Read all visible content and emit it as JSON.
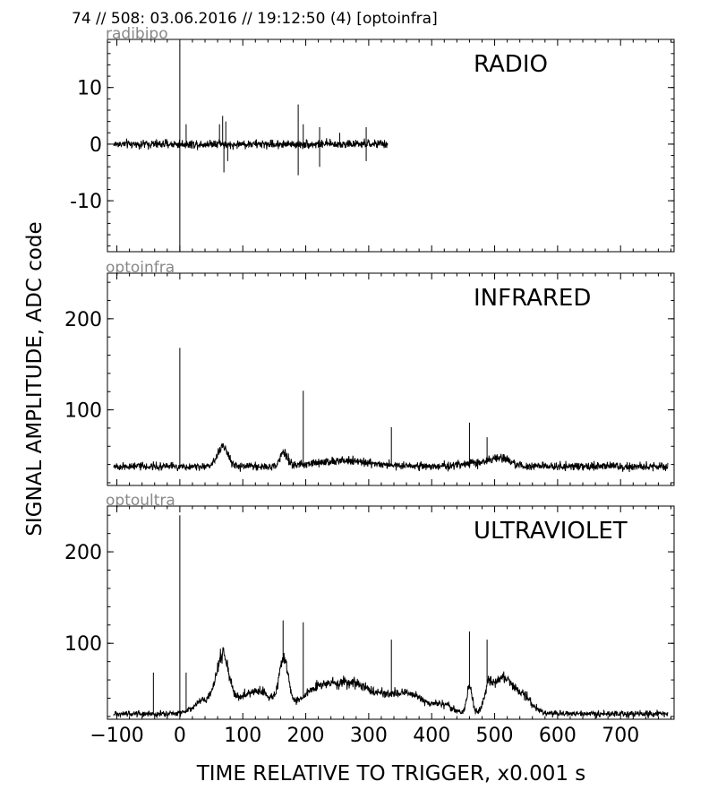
{
  "header": {
    "title": "74 // 508:   03.06.2016 // 19:12:50 (4)  [optoinfra]"
  },
  "ylabel": "SIGNAL AMPLITUDE,  ADC code",
  "xlabel": "TIME RELATIVE TO TRIGGER,   x0.001 s",
  "chart_data": [
    {
      "type": "line",
      "channel": "radibipo",
      "label": "RADIO",
      "xlim": [
        -115,
        785
      ],
      "ylim": [
        -19,
        18.5
      ],
      "yticks": [
        10,
        0,
        -10
      ],
      "yticklabels": [
        "10",
        "0",
        "-10"
      ],
      "baseline": 0,
      "noise": 0.7,
      "trace_end": 330,
      "bumps": [
        {
          "x": 68,
          "a": 1.5,
          "w": 12
        },
        {
          "x": 70,
          "a": -1.5,
          "w": 12
        }
      ],
      "spikes": [
        {
          "x": 0,
          "y": 17.5
        },
        {
          "x": 0,
          "y": -19
        },
        {
          "x": 10,
          "y": 3.5
        },
        {
          "x": 63,
          "y": 3.5
        },
        {
          "x": 68,
          "y": 5
        },
        {
          "x": 70,
          "y": -5
        },
        {
          "x": 73,
          "y": 4
        },
        {
          "x": 76,
          "y": -3
        },
        {
          "x": 188,
          "y": 7
        },
        {
          "x": 188,
          "y": -5.5
        },
        {
          "x": 196,
          "y": 3.5
        },
        {
          "x": 222,
          "y": 3
        },
        {
          "x": 222,
          "y": -4
        },
        {
          "x": 254,
          "y": 2
        },
        {
          "x": 296,
          "y": 3
        },
        {
          "x": 296,
          "y": -3
        }
      ]
    },
    {
      "type": "line",
      "channel": "optoinfra",
      "label": "INFRARED",
      "xlim": [
        -115,
        785
      ],
      "ylim": [
        17,
        250
      ],
      "yticks": [
        200,
        100
      ],
      "yticklabels": [
        "200",
        "100"
      ],
      "baseline": 38,
      "noise": 4,
      "trace_end": 775,
      "bumps": [
        {
          "x": 68,
          "a": 22,
          "w": 12
        },
        {
          "x": 165,
          "a": 14,
          "w": 8
        },
        {
          "x": 260,
          "a": 6,
          "w": 60
        },
        {
          "x": 480,
          "a": 4,
          "w": 40
        },
        {
          "x": 510,
          "a": 7,
          "w": 20
        }
      ],
      "spikes": [
        {
          "x": 0,
          "y": 168
        },
        {
          "x": 196,
          "y": 121
        },
        {
          "x": 336,
          "y": 81
        },
        {
          "x": 460,
          "y": 86
        },
        {
          "x": 488,
          "y": 70
        }
      ]
    },
    {
      "type": "line",
      "channel": "optoultra",
      "label": "ULTRAVIOLET",
      "xlim": [
        -115,
        785
      ],
      "ylim": [
        17,
        250
      ],
      "yticks": [
        200,
        100
      ],
      "yticklabels": [
        "200",
        "100"
      ],
      "baseline": 23,
      "noise": 3,
      "trace_end": 775,
      "bumps": [
        {
          "x": 40,
          "a": 14,
          "w": 25
        },
        {
          "x": 68,
          "a": 58,
          "w": 14
        },
        {
          "x": 120,
          "a": 25,
          "w": 40
        },
        {
          "x": 165,
          "a": 50,
          "w": 10
        },
        {
          "x": 220,
          "a": 25,
          "w": 40
        },
        {
          "x": 280,
          "a": 30,
          "w": 45
        },
        {
          "x": 360,
          "a": 22,
          "w": 40
        },
        {
          "x": 420,
          "a": 8,
          "w": 20
        },
        {
          "x": 460,
          "a": 30,
          "w": 6
        },
        {
          "x": 490,
          "a": 22,
          "w": 8
        },
        {
          "x": 512,
          "a": 38,
          "w": 22
        },
        {
          "x": 545,
          "a": 18,
          "w": 20
        }
      ],
      "spikes": [
        {
          "x": -42,
          "y": 68
        },
        {
          "x": 0,
          "y": 240
        },
        {
          "x": 10,
          "y": 68
        },
        {
          "x": 164,
          "y": 125
        },
        {
          "x": 196,
          "y": 123
        },
        {
          "x": 336,
          "y": 104
        },
        {
          "x": 460,
          "y": 113
        },
        {
          "x": 488,
          "y": 104
        }
      ]
    }
  ],
  "xaxis": {
    "ticks": [
      -100,
      0,
      100,
      200,
      300,
      400,
      500,
      600,
      700
    ],
    "ticklabels": [
      "−100",
      "0",
      "100",
      "200",
      "300",
      "400",
      "500",
      "600",
      "700"
    ]
  },
  "colors": {
    "trace": "#000000",
    "channel_label": "#888888",
    "frame": "#000000"
  }
}
